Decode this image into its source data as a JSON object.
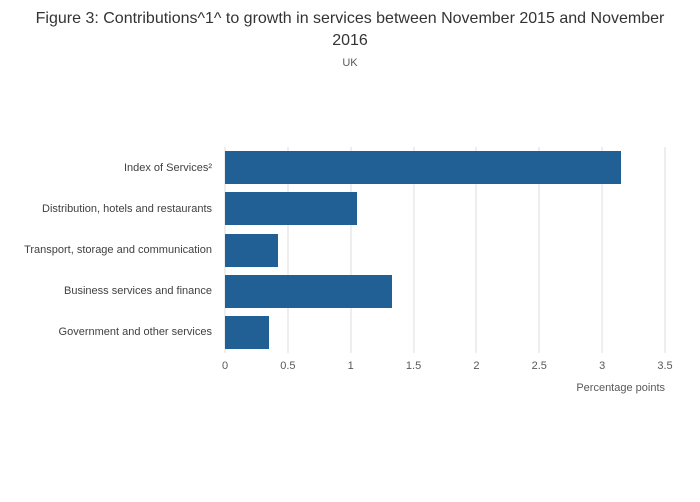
{
  "chart_data": {
    "type": "bar",
    "orientation": "horizontal",
    "title": "Figure 3: Contributions^1^ to growth in services between November 2015 and November 2016",
    "subtitle": "UK",
    "xlabel": "Percentage points",
    "categories": [
      "Index of Services²",
      "Distribution, hotels and restaurants",
      "Transport, storage and communication",
      "Business services and finance",
      "Government and other services"
    ],
    "values": [
      3.15,
      1.05,
      0.42,
      1.33,
      0.35
    ],
    "xlim": [
      0,
      3.5
    ],
    "xticks": [
      0,
      0.5,
      1,
      1.5,
      2,
      2.5,
      3,
      3.5
    ],
    "bar_color": "#206095",
    "gridline_color": "#dcdcdc",
    "grid": true,
    "legend": "none"
  }
}
